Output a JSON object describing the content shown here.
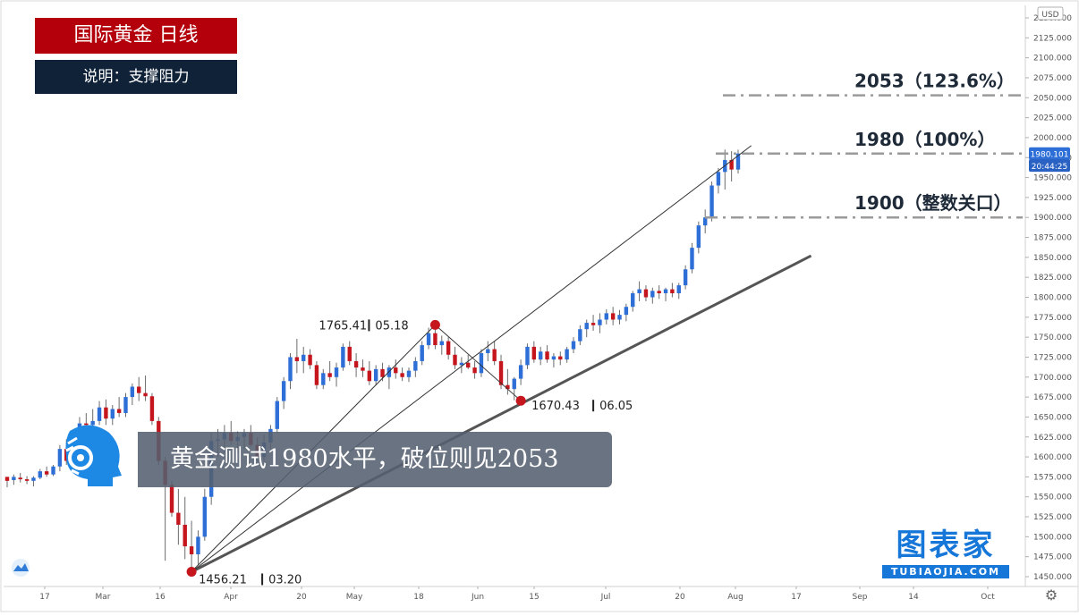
{
  "header": {
    "title": "国际黄金 日线",
    "subtitle": "说明：支撑阻力"
  },
  "caption": "黄金测试1980水平，破位则见2053",
  "brand": {
    "main": "图表家",
    "sub": "TUBIAOJIA.COM"
  },
  "currency": "USD",
  "price_tags": {
    "last": "1980.101",
    "countdown": "20:44:25"
  },
  "chart_data": {
    "type": "candlestick",
    "currency": "USD",
    "y_axis": {
      "min": 1450,
      "max": 2150,
      "step": 25,
      "tick_labels": [
        "2150.000",
        "2125.000",
        "2100.000",
        "2075.000",
        "2050.000",
        "2025.000",
        "2000.000",
        "1975.000",
        "1950.000",
        "1925.000",
        "1900.000",
        "1875.000",
        "1850.000",
        "1825.000",
        "1800.000",
        "1775.000",
        "1750.000",
        "1725.000",
        "1700.000",
        "1675.000",
        "1650.000",
        "1625.000",
        "1600.000",
        "1575.000",
        "1550.000",
        "1525.000",
        "1500.000",
        "1475.000",
        "1450.000"
      ]
    },
    "x_axis": {
      "tick_labels": [
        "17",
        "Mar",
        "16",
        "Apr",
        "20",
        "May",
        "18",
        "Jun",
        "15",
        "Jul",
        "20",
        "Aug",
        "17",
        "Sep",
        "14",
        "Oct"
      ]
    },
    "levels": [
      {
        "label": "2053（123.6%）",
        "price": 2053
      },
      {
        "label": "1980（100%）",
        "price": 1980
      },
      {
        "label": "1900（整数关口）",
        "price": 1900
      }
    ],
    "pivots": [
      {
        "price": 1456.21,
        "price_label": "1456.21",
        "date_label": "03.20"
      },
      {
        "price": 1765.41,
        "price_label": "1765.41",
        "date_label": "05.18"
      },
      {
        "price": 1670.43,
        "price_label": "1670.43",
        "date_label": "06.05"
      }
    ],
    "support_line": {
      "from": {
        "date": "03.20",
        "price": 1456
      },
      "to": {
        "date": "08.04",
        "price": 1852
      }
    },
    "channel_line": {
      "from": {
        "date": "03.20",
        "price": 1456
      },
      "to": {
        "date": "07.31",
        "price": 1990
      }
    },
    "price_tags": [
      {
        "label": "1980.101",
        "price": 1980.1
      },
      {
        "label": "20:44:25",
        "price": 1965
      }
    ],
    "candles": [
      [
        1575,
        1575,
        1562,
        1570
      ],
      [
        1571,
        1578,
        1565,
        1575
      ],
      [
        1574,
        1580,
        1568,
        1572
      ],
      [
        1572,
        1576,
        1566,
        1570
      ],
      [
        1570,
        1576,
        1563,
        1574
      ],
      [
        1574,
        1585,
        1572,
        1582
      ],
      [
        1582,
        1588,
        1575,
        1578
      ],
      [
        1578,
        1590,
        1576,
        1588
      ],
      [
        1588,
        1615,
        1582,
        1610
      ],
      [
        1610,
        1622,
        1590,
        1595
      ],
      [
        1595,
        1625,
        1592,
        1620
      ],
      [
        1620,
        1650,
        1615,
        1642
      ],
      [
        1642,
        1655,
        1625,
        1640
      ],
      [
        1640,
        1660,
        1632,
        1645
      ],
      [
        1645,
        1670,
        1640,
        1662
      ],
      [
        1662,
        1672,
        1640,
        1648
      ],
      [
        1648,
        1665,
        1640,
        1660
      ],
      [
        1660,
        1675,
        1650,
        1655
      ],
      [
        1655,
        1680,
        1650,
        1675
      ],
      [
        1675,
        1692,
        1665,
        1688
      ],
      [
        1688,
        1700,
        1670,
        1680
      ],
      [
        1680,
        1702,
        1670,
        1676
      ],
      [
        1676,
        1680,
        1640,
        1645
      ],
      [
        1645,
        1650,
        1590,
        1595
      ],
      [
        1595,
        1600,
        1470,
        1565
      ],
      [
        1565,
        1570,
        1525,
        1530
      ],
      [
        1530,
        1560,
        1490,
        1515
      ],
      [
        1515,
        1550,
        1472,
        1488
      ],
      [
        1488,
        1520,
        1456,
        1478
      ],
      [
        1478,
        1508,
        1465,
        1500
      ],
      [
        1500,
        1560,
        1495,
        1550
      ],
      [
        1550,
        1630,
        1540,
        1620
      ],
      [
        1620,
        1635,
        1600,
        1622
      ],
      [
        1622,
        1640,
        1605,
        1630
      ],
      [
        1630,
        1645,
        1615,
        1620
      ],
      [
        1620,
        1632,
        1605,
        1625
      ],
      [
        1625,
        1635,
        1610,
        1630
      ],
      [
        1630,
        1640,
        1612,
        1615
      ],
      [
        1615,
        1625,
        1595,
        1600
      ],
      [
        1600,
        1628,
        1595,
        1618
      ],
      [
        1618,
        1640,
        1610,
        1635
      ],
      [
        1635,
        1675,
        1630,
        1670
      ],
      [
        1670,
        1700,
        1660,
        1695
      ],
      [
        1695,
        1730,
        1685,
        1725
      ],
      [
        1725,
        1748,
        1705,
        1720
      ],
      [
        1720,
        1738,
        1705,
        1728
      ],
      [
        1728,
        1735,
        1710,
        1715
      ],
      [
        1715,
        1720,
        1685,
        1690
      ],
      [
        1690,
        1710,
        1685,
        1705
      ],
      [
        1705,
        1720,
        1695,
        1700
      ],
      [
        1700,
        1718,
        1688,
        1712
      ],
      [
        1712,
        1742,
        1708,
        1738
      ],
      [
        1738,
        1745,
        1715,
        1720
      ],
      [
        1720,
        1730,
        1700,
        1712
      ],
      [
        1712,
        1722,
        1700,
        1708
      ],
      [
        1708,
        1720,
        1690,
        1695
      ],
      [
        1695,
        1715,
        1690,
        1710
      ],
      [
        1710,
        1718,
        1695,
        1700
      ],
      [
        1700,
        1715,
        1685,
        1712
      ],
      [
        1712,
        1722,
        1698,
        1705
      ],
      [
        1705,
        1712,
        1695,
        1700
      ],
      [
        1700,
        1712,
        1694,
        1708
      ],
      [
        1708,
        1725,
        1700,
        1720
      ],
      [
        1720,
        1745,
        1715,
        1740
      ],
      [
        1740,
        1762,
        1735,
        1755
      ],
      [
        1755,
        1766,
        1735,
        1740
      ],
      [
        1740,
        1752,
        1728,
        1745
      ],
      [
        1745,
        1750,
        1722,
        1728
      ],
      [
        1728,
        1738,
        1710,
        1715
      ],
      [
        1715,
        1725,
        1705,
        1718
      ],
      [
        1718,
        1728,
        1710,
        1712
      ],
      [
        1712,
        1720,
        1698,
        1705
      ],
      [
        1705,
        1735,
        1700,
        1730
      ],
      [
        1730,
        1745,
        1720,
        1735
      ],
      [
        1735,
        1745,
        1715,
        1720
      ],
      [
        1720,
        1728,
        1685,
        1690
      ],
      [
        1690,
        1710,
        1678,
        1685
      ],
      [
        1685,
        1700,
        1671,
        1698
      ],
      [
        1698,
        1722,
        1690,
        1715
      ],
      [
        1715,
        1742,
        1710,
        1738
      ],
      [
        1738,
        1745,
        1718,
        1722
      ],
      [
        1722,
        1738,
        1715,
        1732
      ],
      [
        1732,
        1740,
        1718,
        1722
      ],
      [
        1722,
        1730,
        1712,
        1726
      ],
      [
        1726,
        1732,
        1715,
        1722
      ],
      [
        1722,
        1738,
        1718,
        1735
      ],
      [
        1735,
        1750,
        1730,
        1745
      ],
      [
        1745,
        1765,
        1740,
        1760
      ],
      [
        1760,
        1772,
        1750,
        1768
      ],
      [
        1768,
        1778,
        1758,
        1765
      ],
      [
        1765,
        1780,
        1755,
        1772
      ],
      [
        1772,
        1785,
        1766,
        1780
      ],
      [
        1780,
        1788,
        1765,
        1772
      ],
      [
        1772,
        1784,
        1766,
        1778
      ],
      [
        1778,
        1792,
        1770,
        1788
      ],
      [
        1788,
        1808,
        1782,
        1805
      ],
      [
        1805,
        1820,
        1795,
        1810
      ],
      [
        1810,
        1815,
        1795,
        1800
      ],
      [
        1800,
        1812,
        1792,
        1808
      ],
      [
        1808,
        1815,
        1798,
        1805
      ],
      [
        1805,
        1812,
        1795,
        1810
      ],
      [
        1810,
        1818,
        1800,
        1805
      ],
      [
        1805,
        1818,
        1798,
        1815
      ],
      [
        1815,
        1840,
        1810,
        1835
      ],
      [
        1835,
        1868,
        1830,
        1862
      ],
      [
        1862,
        1895,
        1855,
        1890
      ],
      [
        1890,
        1910,
        1880,
        1900
      ],
      [
        1900,
        1945,
        1895,
        1940
      ],
      [
        1940,
        1962,
        1930,
        1957
      ],
      [
        1957,
        1985,
        1935,
        1972
      ],
      [
        1972,
        1983,
        1945,
        1960
      ],
      [
        1960,
        1985,
        1955,
        1980
      ]
    ]
  }
}
